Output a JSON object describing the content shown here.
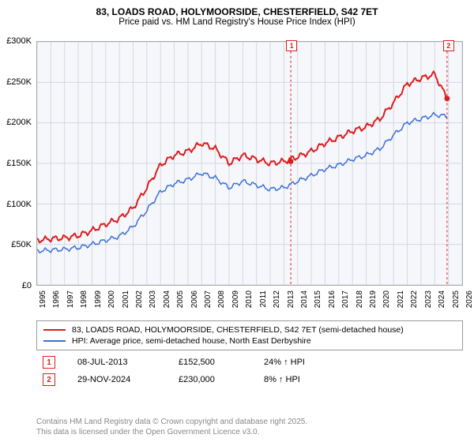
{
  "title": {
    "line1": "83, LOADS ROAD, HOLYMOORSIDE, CHESTERFIELD, S42 7ET",
    "line2": "Price paid vs. HM Land Registry's House Price Index (HPI)"
  },
  "chart": {
    "type": "line",
    "background_color": "#f6f7fb",
    "grid_color": "#d5d7e0",
    "axis_color": "#888888",
    "x_years": [
      1995,
      1996,
      1997,
      1998,
      1999,
      2000,
      2001,
      2002,
      2003,
      2004,
      2005,
      2006,
      2007,
      2008,
      2009,
      2010,
      2011,
      2012,
      2013,
      2014,
      2015,
      2016,
      2017,
      2018,
      2019,
      2020,
      2021,
      2022,
      2023,
      2024,
      2025,
      2026
    ],
    "ylim": [
      0,
      300000
    ],
    "ytick_step": 50000,
    "ytick_labels": [
      "£0",
      "£50K",
      "£100K",
      "£150K",
      "£200K",
      "£250K",
      "£300K"
    ],
    "series": [
      {
        "name": "property",
        "color": "#d91e1e",
        "line_width": 2,
        "label": "83, LOADS ROAD, HOLYMOORSIDE, CHESTERFIELD, S42 7ET (semi-detached house)",
        "values_by_year": {
          "1995": 55000,
          "1996": 57000,
          "1997": 58000,
          "1998": 61000,
          "1999": 67000,
          "2000": 75000,
          "2001": 82000,
          "2002": 95000,
          "2003": 120000,
          "2004": 148000,
          "2005": 160000,
          "2006": 165000,
          "2007": 175000,
          "2008": 168000,
          "2009": 150000,
          "2010": 160000,
          "2011": 155000,
          "2012": 150000,
          "2013": 152500,
          "2014": 158000,
          "2015": 165000,
          "2016": 175000,
          "2017": 182000,
          "2018": 190000,
          "2019": 195000,
          "2020": 205000,
          "2021": 225000,
          "2022": 248000,
          "2023": 255000,
          "2024": 260000,
          "2024.9": 230000
        }
      },
      {
        "name": "hpi",
        "color": "#3a6fd8",
        "line_width": 1.5,
        "label": "HPI: Average price, semi-detached house, North East Derbyshire",
        "values_by_year": {
          "1995": 42000,
          "1996": 43000,
          "1997": 44000,
          "1998": 46000,
          "1999": 50000,
          "2000": 55000,
          "2001": 60000,
          "2002": 72000,
          "2003": 92000,
          "2004": 115000,
          "2005": 125000,
          "2006": 130000,
          "2007": 138000,
          "2008": 132000,
          "2009": 120000,
          "2010": 128000,
          "2011": 123000,
          "2012": 118000,
          "2013": 120000,
          "2014": 128000,
          "2015": 135000,
          "2016": 143000,
          "2017": 148000,
          "2018": 155000,
          "2019": 160000,
          "2020": 168000,
          "2021": 185000,
          "2022": 200000,
          "2023": 205000,
          "2024": 210000,
          "2024.9": 208000
        }
      }
    ],
    "markers": [
      {
        "id": "1",
        "year": 2013.5,
        "marker_dot_value": 152500,
        "color": "#d91e1e"
      },
      {
        "id": "2",
        "year": 2024.9,
        "marker_dot_value": 230000,
        "color": "#d91e1e"
      }
    ]
  },
  "marker_table": {
    "rows": [
      {
        "id": "1",
        "date": "08-JUL-2013",
        "price": "£152,500",
        "hpi": "24% ↑ HPI",
        "color": "#d91e1e"
      },
      {
        "id": "2",
        "date": "29-NOV-2024",
        "price": "£230,000",
        "hpi": "8% ↑ HPI",
        "color": "#d91e1e"
      }
    ]
  },
  "footer": {
    "line1": "Contains HM Land Registry data © Crown copyright and database right 2025.",
    "line2": "This data is licensed under the Open Government Licence v3.0."
  }
}
